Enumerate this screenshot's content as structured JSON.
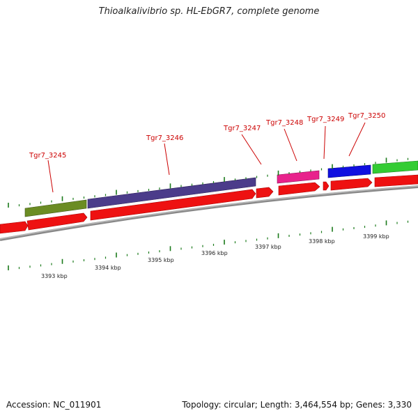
{
  "header": {
    "title": "Thioalkalivibrio sp. HL-EbGR7, complete genome"
  },
  "footer": {
    "accession": "Accession: NC_011901",
    "summary": "Topology: circular; Length: 3,464,554 bp; Genes: 3,330"
  },
  "colors": {
    "strand_arrow": "#ee1111",
    "backbone": "#888888",
    "tick": "#1a7a1a",
    "label": "#cc0000"
  },
  "genes": [
    {
      "name": "Tgr7_3245",
      "color": "#6b8c23"
    },
    {
      "name": "Tgr7_3246",
      "color": "#4b3c8a"
    },
    {
      "name": "Tgr7_3247",
      "color": "#ee1111"
    },
    {
      "name": "Tgr7_3248",
      "color": "#e8238c"
    },
    {
      "name": "Tgr7_3249",
      "color": "#ee1111"
    },
    {
      "name": "Tgr7_3250",
      "color": "#1010e0"
    },
    {
      "name": "",
      "color": "#33cc33"
    }
  ],
  "scale": {
    "labels": [
      "3393 kbp",
      "3394 kbp",
      "3395 kbp",
      "3396 kbp",
      "3397 kbp",
      "3398 kbp",
      "3399 kbp"
    ]
  }
}
